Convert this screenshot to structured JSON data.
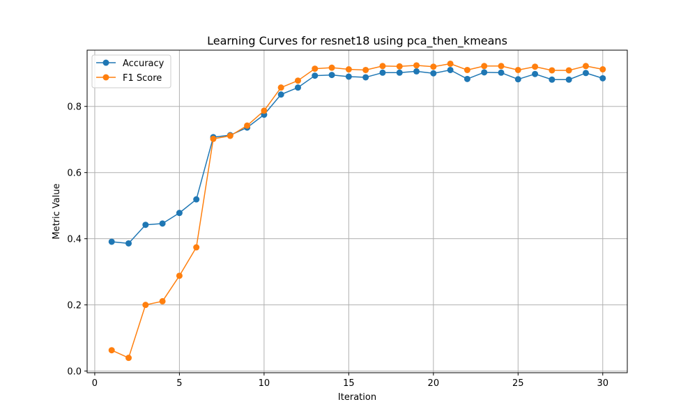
{
  "chart_data": {
    "type": "line",
    "title": "Learning Curves for resnet18 using pca_then_kmeans",
    "xlabel": "Iteration",
    "ylabel": "Metric Value",
    "xlim": [
      -0.45,
      31.45
    ],
    "ylim": [
      -0.005,
      0.97
    ],
    "xticks": [
      0,
      5,
      10,
      15,
      20,
      25,
      30
    ],
    "yticks": [
      0.0,
      0.2,
      0.4,
      0.6,
      0.8
    ],
    "ytick_labels": [
      "0.0",
      "0.2",
      "0.4",
      "0.6",
      "0.8"
    ],
    "grid": true,
    "legend_position": "top-left",
    "x": [
      1,
      2,
      3,
      4,
      5,
      6,
      7,
      8,
      9,
      10,
      11,
      12,
      13,
      14,
      15,
      16,
      17,
      18,
      19,
      20,
      21,
      22,
      23,
      24,
      25,
      26,
      27,
      28,
      29,
      30
    ],
    "series": [
      {
        "name": "Accuracy",
        "color": "#1f77b4",
        "values": [
          0.391,
          0.386,
          0.442,
          0.446,
          0.478,
          0.519,
          0.707,
          0.713,
          0.736,
          0.775,
          0.836,
          0.857,
          0.893,
          0.895,
          0.89,
          0.888,
          0.902,
          0.902,
          0.906,
          0.9,
          0.91,
          0.883,
          0.903,
          0.902,
          0.882,
          0.898,
          0.881,
          0.881,
          0.901,
          0.885
        ]
      },
      {
        "name": "F1 Score",
        "color": "#ff7f0e",
        "values": [
          0.063,
          0.04,
          0.2,
          0.211,
          0.288,
          0.374,
          0.702,
          0.711,
          0.742,
          0.787,
          0.857,
          0.878,
          0.914,
          0.917,
          0.912,
          0.91,
          0.922,
          0.921,
          0.924,
          0.92,
          0.929,
          0.91,
          0.922,
          0.922,
          0.91,
          0.92,
          0.909,
          0.909,
          0.922,
          0.912
        ]
      }
    ]
  }
}
